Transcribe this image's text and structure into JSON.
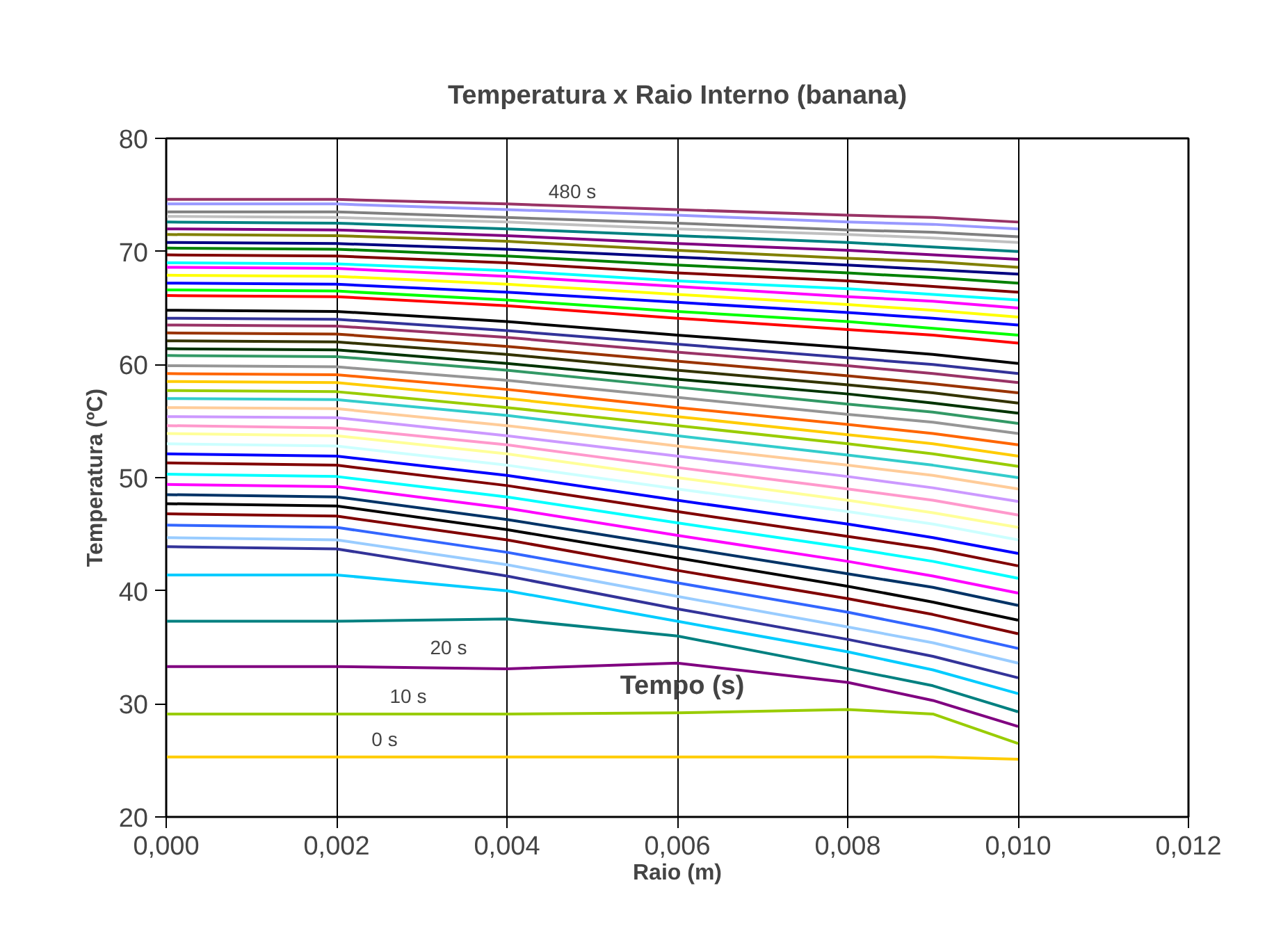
{
  "chart_data": {
    "type": "line",
    "title": "Temperatura x Raio Interno (banana)",
    "xlabel": "Raio (m)",
    "ylabel": "Temperatura (ºC)",
    "x": [
      0,
      0.002,
      0.004,
      0.006,
      0.008,
      0.009,
      0.01
    ],
    "xlim": [
      0,
      0.012
    ],
    "ylim": [
      20,
      80
    ],
    "xticks": [
      {
        "value": 0,
        "label": "0,000"
      },
      {
        "value": 0.002,
        "label": "0,002"
      },
      {
        "value": 0.004,
        "label": "0,004"
      },
      {
        "value": 0.006,
        "label": "0,006"
      },
      {
        "value": 0.008,
        "label": "0,008"
      },
      {
        "value": 0.01,
        "label": "0,010"
      },
      {
        "value": 0.012,
        "label": "0,012"
      }
    ],
    "yticks": [
      20,
      30,
      40,
      50,
      60,
      70,
      80
    ],
    "grid": "x",
    "annotations": [
      "480 s",
      "20 s",
      "10 s",
      "0 s",
      "Tempo (s)"
    ],
    "series": [
      {
        "color": "#ffcc00",
        "values": [
          25.3,
          25.3,
          25.3,
          25.3,
          25.3,
          25.3,
          25.1
        ]
      },
      {
        "color": "#99cc00",
        "values": [
          29.1,
          29.1,
          29.1,
          29.2,
          29.5,
          29.1,
          26.5
        ]
      },
      {
        "color": "#800080",
        "values": [
          33.3,
          33.3,
          33.1,
          33.6,
          31.9,
          30.3,
          28.0
        ]
      },
      {
        "color": "#008080",
        "values": [
          37.3,
          37.3,
          37.5,
          36.0,
          33.1,
          31.6,
          29.3
        ]
      },
      {
        "color": "#00ccff",
        "values": [
          41.4,
          41.4,
          40.0,
          37.3,
          34.6,
          33.0,
          30.9
        ]
      },
      {
        "color": "#333399",
        "values": [
          43.9,
          43.7,
          41.3,
          38.4,
          35.7,
          34.2,
          32.3
        ]
      },
      {
        "color": "#99ccff",
        "values": [
          44.7,
          44.5,
          42.3,
          39.5,
          36.8,
          35.4,
          33.6
        ]
      },
      {
        "color": "#3366ff",
        "values": [
          45.8,
          45.6,
          43.4,
          40.7,
          38.1,
          36.6,
          34.9
        ]
      },
      {
        "color": "#800000",
        "values": [
          46.8,
          46.6,
          44.5,
          41.8,
          39.3,
          37.9,
          36.2
        ]
      },
      {
        "color": "#000000",
        "values": [
          47.7,
          47.5,
          45.4,
          42.9,
          40.4,
          39.0,
          37.4
        ]
      },
      {
        "color": "#003366",
        "values": [
          48.5,
          48.3,
          46.3,
          43.9,
          41.5,
          40.3,
          38.7
        ]
      },
      {
        "color": "#ff00ff",
        "values": [
          49.4,
          49.2,
          47.3,
          44.9,
          42.6,
          41.3,
          39.8
        ]
      },
      {
        "color": "#00ffff",
        "values": [
          50.3,
          50.1,
          48.3,
          46.0,
          43.8,
          42.6,
          41.1
        ]
      },
      {
        "color": "#800000",
        "values": [
          51.3,
          51.1,
          49.3,
          47.0,
          44.8,
          43.7,
          42.2
        ]
      },
      {
        "color": "#0000ff",
        "values": [
          52.1,
          51.9,
          50.2,
          48.0,
          45.9,
          44.7,
          43.3
        ]
      },
      {
        "color": "#ccffff",
        "values": [
          53.0,
          52.8,
          51.1,
          49.0,
          47.0,
          45.9,
          44.5
        ]
      },
      {
        "color": "#ffff99",
        "values": [
          53.9,
          53.7,
          52.1,
          50.0,
          48.0,
          46.9,
          45.6
        ]
      },
      {
        "color": "#ff99cc",
        "values": [
          54.6,
          54.4,
          52.9,
          50.9,
          49.0,
          48.0,
          46.7
        ]
      },
      {
        "color": "#cc99ff",
        "values": [
          55.4,
          55.3,
          53.7,
          51.9,
          50.1,
          49.1,
          47.9
        ]
      },
      {
        "color": "#ffcc99",
        "values": [
          56.2,
          56.1,
          54.6,
          52.8,
          51.1,
          50.2,
          49.0
        ]
      },
      {
        "color": "#33cccc",
        "values": [
          57.0,
          56.9,
          55.5,
          53.7,
          52.0,
          51.1,
          50.0
        ]
      },
      {
        "color": "#99cc00",
        "values": [
          57.7,
          57.6,
          56.2,
          54.6,
          53.0,
          52.1,
          51.0
        ]
      },
      {
        "color": "#ffcc00",
        "values": [
          58.5,
          58.4,
          57.0,
          55.4,
          53.8,
          53.0,
          51.9
        ]
      },
      {
        "color": "#ff6600",
        "values": [
          59.2,
          59.1,
          57.8,
          56.2,
          54.7,
          53.9,
          52.9
        ]
      },
      {
        "color": "#969696",
        "values": [
          59.9,
          59.8,
          58.6,
          57.1,
          55.6,
          54.9,
          53.9
        ]
      },
      {
        "color": "#339966",
        "values": [
          60.8,
          60.7,
          59.5,
          58.0,
          56.5,
          55.8,
          54.8
        ]
      },
      {
        "color": "#003300",
        "values": [
          61.4,
          61.3,
          60.1,
          58.7,
          57.4,
          56.6,
          55.7
        ]
      },
      {
        "color": "#333300",
        "values": [
          62.1,
          62.0,
          60.9,
          59.5,
          58.2,
          57.5,
          56.6
        ]
      },
      {
        "color": "#993300",
        "values": [
          62.8,
          62.7,
          61.6,
          60.3,
          59.0,
          58.3,
          57.5
        ]
      },
      {
        "color": "#993366",
        "values": [
          63.5,
          63.4,
          62.4,
          61.1,
          59.9,
          59.2,
          58.4
        ]
      },
      {
        "color": "#333399",
        "values": [
          64.1,
          64.0,
          63.0,
          61.8,
          60.6,
          60.0,
          59.2
        ]
      },
      {
        "color": "#000000",
        "values": [
          64.8,
          64.7,
          63.8,
          62.6,
          61.5,
          60.9,
          60.1
        ]
      },
      {
        "color": "#ff0000",
        "values": [
          66.1,
          66.0,
          65.2,
          64.1,
          63.1,
          62.6,
          61.9
        ]
      },
      {
        "color": "#00ff00",
        "values": [
          66.6,
          66.5,
          65.7,
          64.7,
          63.8,
          63.2,
          62.6
        ]
      },
      {
        "color": "#0000ff",
        "values": [
          67.2,
          67.1,
          66.4,
          65.5,
          64.6,
          64.1,
          63.5
        ]
      },
      {
        "color": "#ffff00",
        "values": [
          67.9,
          67.8,
          67.1,
          66.2,
          65.3,
          64.8,
          64.2
        ]
      },
      {
        "color": "#ff00ff",
        "values": [
          68.6,
          68.5,
          67.8,
          66.9,
          66.0,
          65.6,
          65.0
        ]
      },
      {
        "color": "#00ffff",
        "values": [
          69.0,
          68.9,
          68.3,
          67.4,
          66.7,
          66.2,
          65.7
        ]
      },
      {
        "color": "#800000",
        "values": [
          69.7,
          69.6,
          69.0,
          68.1,
          67.4,
          66.9,
          66.4
        ]
      },
      {
        "color": "#008000",
        "values": [
          70.3,
          70.2,
          69.6,
          68.8,
          68.1,
          67.7,
          67.2
        ]
      },
      {
        "color": "#000080",
        "values": [
          70.8,
          70.7,
          70.2,
          69.5,
          68.8,
          68.4,
          68.0
        ]
      },
      {
        "color": "#808000",
        "values": [
          71.5,
          71.4,
          70.9,
          70.1,
          69.4,
          69.1,
          68.6
        ]
      },
      {
        "color": "#800080",
        "values": [
          72.0,
          71.9,
          71.4,
          70.7,
          70.1,
          69.7,
          69.3
        ]
      },
      {
        "color": "#008080",
        "values": [
          72.6,
          72.5,
          72.0,
          71.4,
          70.8,
          70.4,
          70.0
        ]
      },
      {
        "color": "#c0c0c0",
        "values": [
          73.1,
          73.0,
          72.6,
          72.0,
          71.5,
          71.2,
          70.8
        ]
      },
      {
        "color": "#808080",
        "values": [
          73.5,
          73.5,
          73.0,
          72.5,
          71.9,
          71.7,
          71.3
        ]
      },
      {
        "color": "#9999ff",
        "values": [
          74.2,
          74.2,
          73.7,
          73.2,
          72.6,
          72.4,
          72.0
        ]
      },
      {
        "color": "#993366",
        "values": [
          74.6,
          74.6,
          74.2,
          73.7,
          73.2,
          73.0,
          72.6
        ]
      }
    ]
  }
}
